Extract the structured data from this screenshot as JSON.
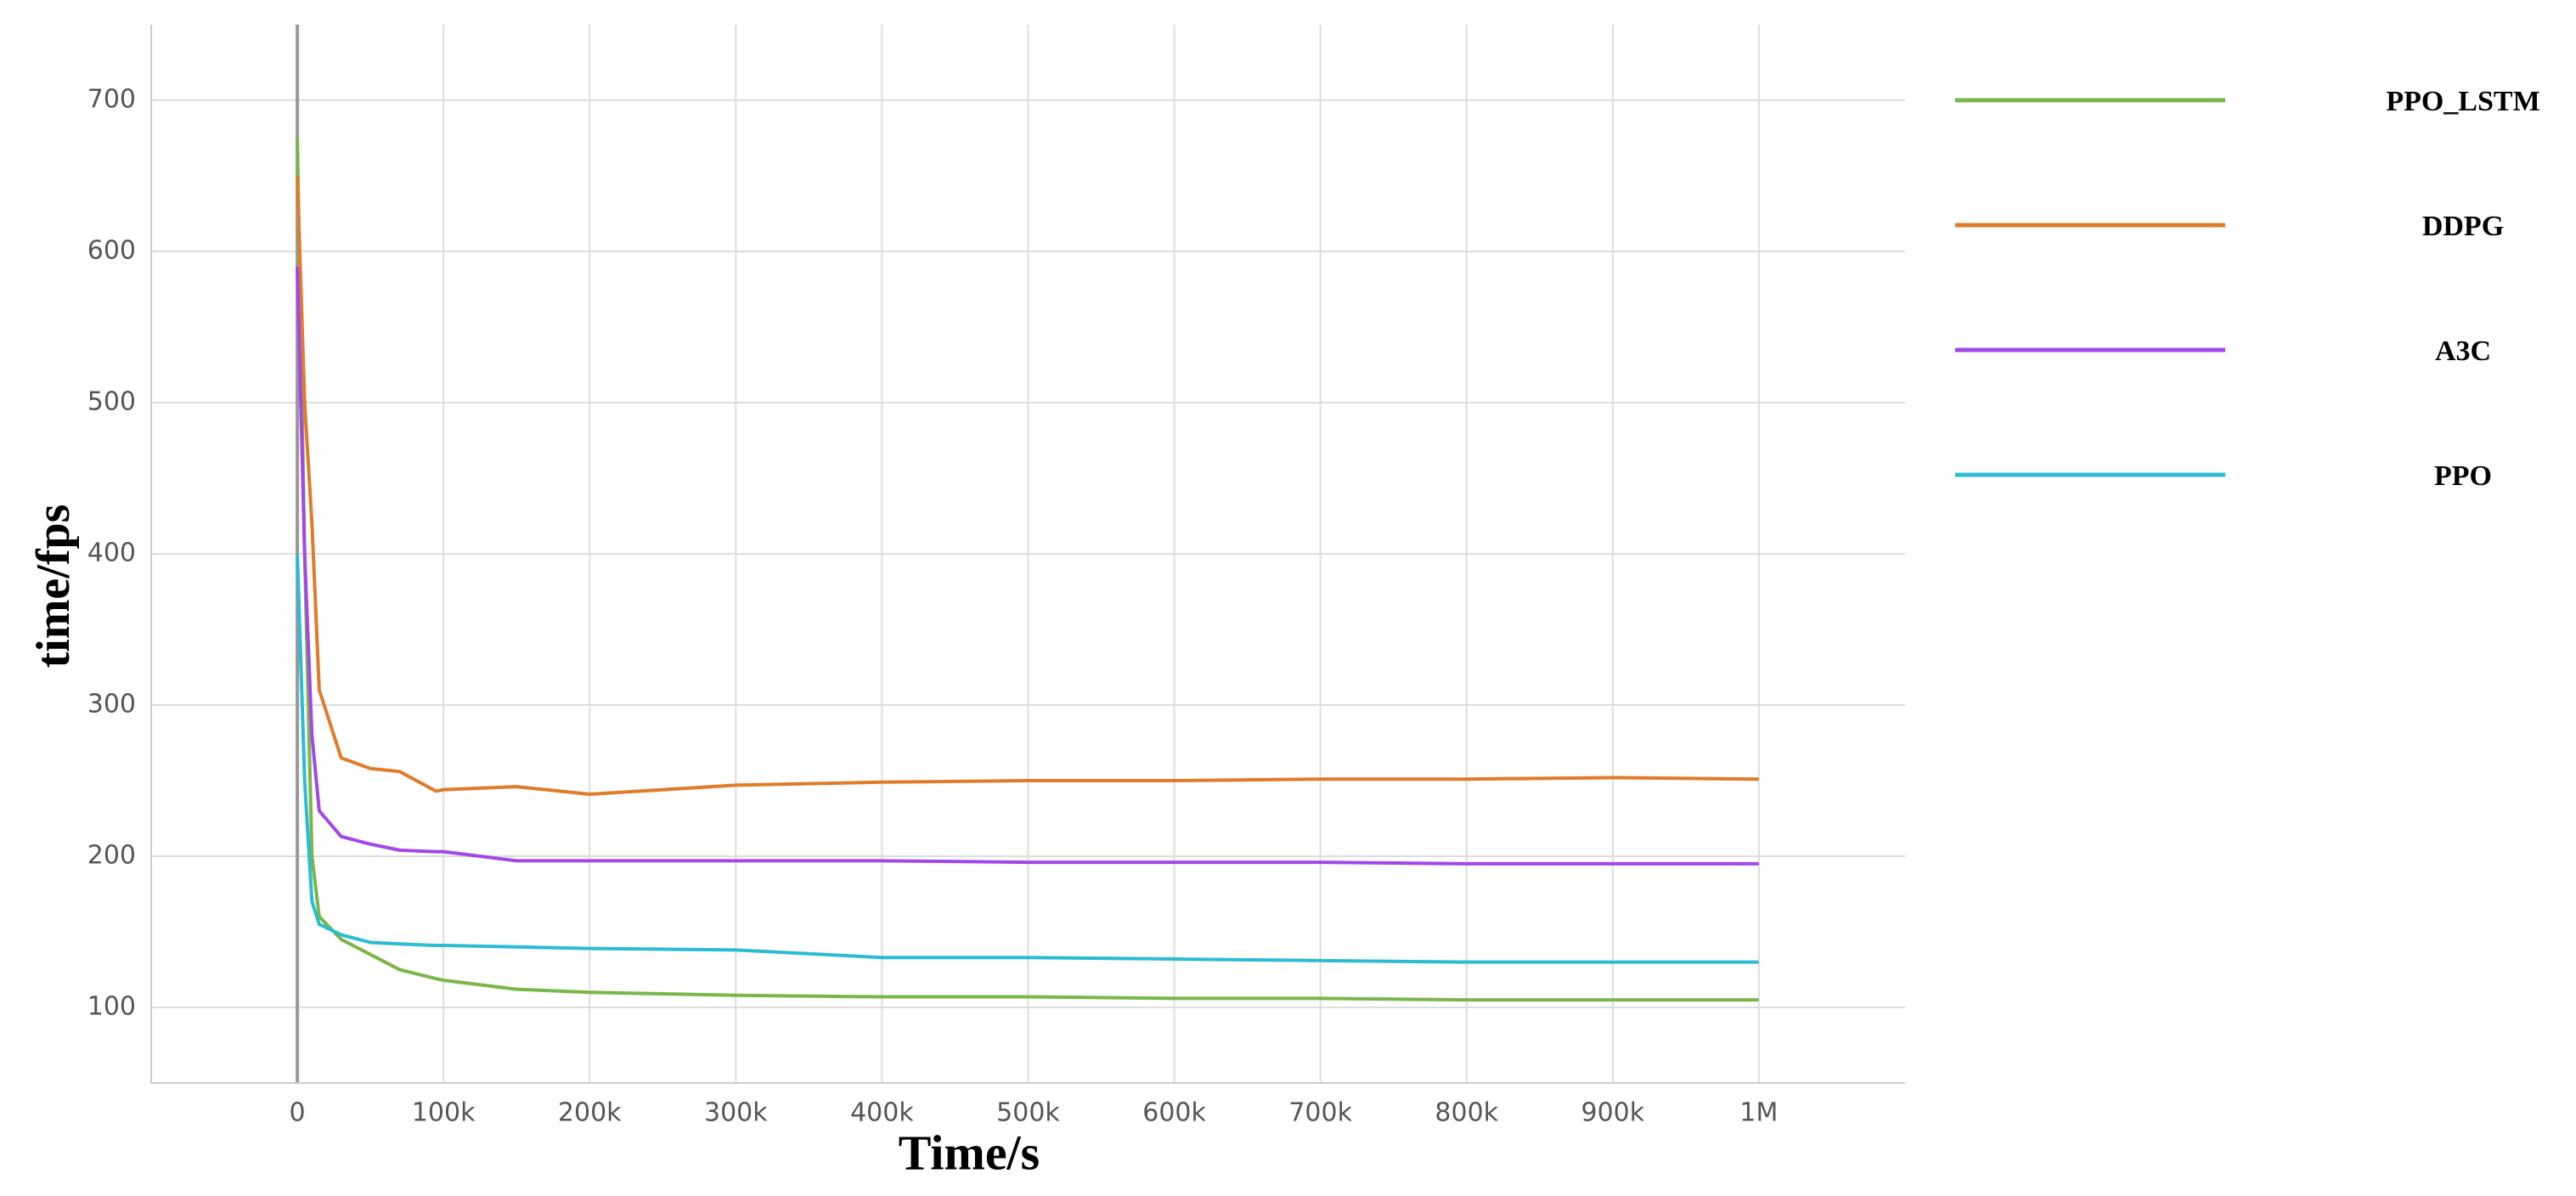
{
  "chart_data": {
    "type": "line",
    "x_label": "Time/s",
    "y_label": "time/fps",
    "x": [
      0,
      5000,
      10000,
      15000,
      30000,
      50000,
      70000,
      95000,
      100000,
      150000,
      200000,
      300000,
      400000,
      500000,
      600000,
      700000,
      800000,
      900000,
      1000000
    ],
    "series": [
      {
        "name": "PPO_LSTM",
        "color": "#7ab648",
        "values": [
          675,
          400,
          200,
          160,
          145,
          135,
          125,
          119,
          118,
          112,
          110,
          108,
          107,
          107,
          106,
          106,
          105,
          105,
          105
        ]
      },
      {
        "name": "DDPG",
        "color": "#e07b2a",
        "values": [
          650,
          500,
          420,
          310,
          265,
          258,
          256,
          243,
          244,
          246,
          241,
          247,
          249,
          250,
          250,
          251,
          251,
          252,
          251
        ]
      },
      {
        "name": "A3C",
        "color": "#a347e8",
        "values": [
          590,
          400,
          280,
          230,
          213,
          208,
          204,
          203,
          203,
          197,
          197,
          197,
          197,
          196,
          196,
          196,
          195,
          195,
          195
        ]
      },
      {
        "name": "PPO",
        "color": "#2bbcd4",
        "values": [
          400,
          250,
          170,
          155,
          148,
          143,
          142,
          141,
          141,
          140,
          139,
          138,
          133,
          133,
          132,
          131,
          130,
          130,
          130
        ]
      }
    ],
    "xlim": [
      -100000,
      1100000
    ],
    "xticks": [
      0,
      {
        "value": 100000,
        "label": "100k"
      },
      {
        "value": 200000,
        "label": "200k"
      },
      {
        "value": 300000,
        "label": "300k"
      },
      {
        "value": 400000,
        "label": "400k"
      },
      {
        "value": 500000,
        "label": "500k"
      },
      {
        "value": 600000,
        "label": "600k"
      },
      {
        "value": 700000,
        "label": "700k"
      },
      {
        "value": 800000,
        "label": "800k"
      },
      {
        "value": 900000,
        "label": "900k"
      },
      {
        "value": 1000000,
        "label": "1M"
      }
    ],
    "ylim": [
      50,
      750
    ],
    "yticks": [
      100,
      200,
      300,
      400,
      500,
      600,
      700
    ],
    "grid": true
  }
}
